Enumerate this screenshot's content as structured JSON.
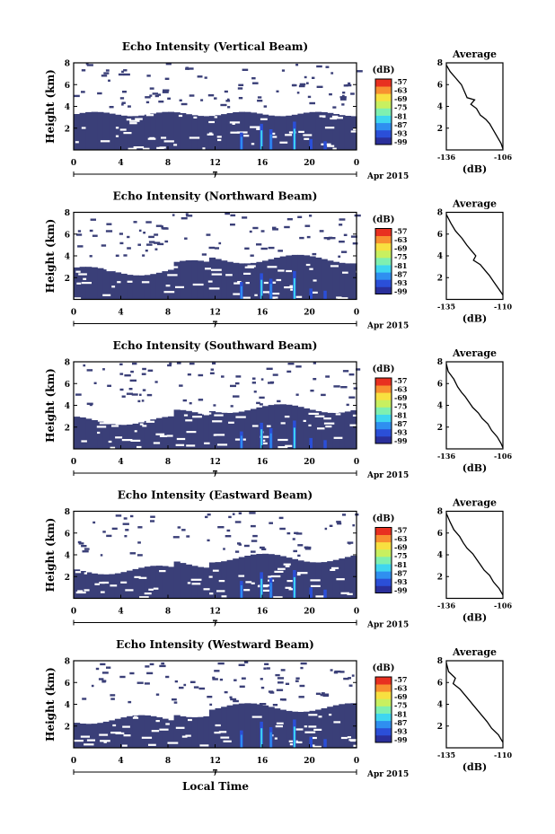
{
  "figure": {
    "xlabel": "Local Time",
    "colors": {
      "background_echo": "#3a3f78",
      "colormap": [
        "#2a2f9a",
        "#2b4fd8",
        "#2f8ff0",
        "#3fd6f0",
        "#7ff0b0",
        "#c8f060",
        "#f8e040",
        "#f89030",
        "#e83020"
      ]
    }
  },
  "chart_data": [
    {
      "type": "heatmap",
      "title": "Echo Intensity (Vertical Beam)",
      "ylabel": "Height (km)",
      "x_ticks": [
        "0",
        "4",
        "8",
        "12",
        "16",
        "20",
        "0"
      ],
      "x_day": "7",
      "x_month": "Apr 2015",
      "ylim": [
        0,
        8
      ],
      "y_ticks": [
        "2",
        "4",
        "6",
        "8"
      ],
      "colorbar_unit": "(dB)",
      "colorbar_ticks": [
        "-57",
        "-63",
        "-69",
        "-75",
        "-81",
        "-87",
        "-93",
        "-99"
      ],
      "profile": {
        "title": "Average",
        "xlabel": "(dB)",
        "x_ticks": [
          "-136",
          "-106"
        ],
        "y_ticks": [
          "2",
          "4",
          "6",
          "8"
        ],
        "points": [
          [
            -136,
            7.8
          ],
          [
            -134,
            7.2
          ],
          [
            -131,
            6.6
          ],
          [
            -128,
            6.0
          ],
          [
            -126,
            5.2
          ],
          [
            -125,
            4.8
          ],
          [
            -121,
            4.6
          ],
          [
            -123,
            4.2
          ],
          [
            -120,
            3.8
          ],
          [
            -118,
            3.2
          ],
          [
            -115,
            2.8
          ],
          [
            -113,
            2.4
          ],
          [
            -111,
            1.8
          ],
          [
            -109,
            1.2
          ],
          [
            -107,
            0.6
          ],
          [
            -106,
            0.1
          ]
        ]
      }
    },
    {
      "type": "heatmap",
      "title": "Echo Intensity (Northward Beam)",
      "ylabel": "Height (km)",
      "x_ticks": [
        "0",
        "4",
        "8",
        "12",
        "16",
        "20",
        "0"
      ],
      "x_day": "7",
      "x_month": "Apr 2015",
      "ylim": [
        0,
        8
      ],
      "y_ticks": [
        "2",
        "4",
        "6",
        "8"
      ],
      "colorbar_unit": "(dB)",
      "colorbar_ticks": [
        "-57",
        "-63",
        "-69",
        "-75",
        "-81",
        "-87",
        "-93",
        "-99"
      ],
      "profile": {
        "title": "Average",
        "xlabel": "(dB)",
        "x_ticks": [
          "-135",
          "-110"
        ],
        "y_ticks": [
          "2",
          "4",
          "6",
          "8"
        ],
        "points": [
          [
            -135,
            7.8
          ],
          [
            -133,
            7.0
          ],
          [
            -131,
            6.3
          ],
          [
            -128,
            5.6
          ],
          [
            -126,
            5.0
          ],
          [
            -124,
            4.5
          ],
          [
            -122,
            4.0
          ],
          [
            -123,
            3.6
          ],
          [
            -120,
            3.2
          ],
          [
            -118,
            2.7
          ],
          [
            -116,
            2.2
          ],
          [
            -114,
            1.6
          ],
          [
            -112,
            1.0
          ],
          [
            -110,
            0.4
          ]
        ]
      }
    },
    {
      "type": "heatmap",
      "title": "Echo Intensity (Southward Beam)",
      "ylabel": "Height (km)",
      "x_ticks": [
        "0",
        "4",
        "8",
        "12",
        "16",
        "20",
        "0"
      ],
      "x_day": "7",
      "x_month": "Apr 2015",
      "ylim": [
        0,
        8
      ],
      "y_ticks": [
        "2",
        "4",
        "6",
        "8"
      ],
      "colorbar_unit": "(dB)",
      "colorbar_ticks": [
        "-57",
        "-63",
        "-69",
        "-75",
        "-81",
        "-87",
        "-93",
        "-99"
      ],
      "profile": {
        "title": "Average",
        "xlabel": "(dB)",
        "x_ticks": [
          "-136",
          "-106"
        ],
        "y_ticks": [
          "2",
          "4",
          "6",
          "8"
        ],
        "points": [
          [
            -136,
            7.8
          ],
          [
            -135,
            7.1
          ],
          [
            -132,
            6.4
          ],
          [
            -130,
            5.7
          ],
          [
            -128,
            5.2
          ],
          [
            -126,
            4.8
          ],
          [
            -124,
            4.3
          ],
          [
            -122,
            3.8
          ],
          [
            -119,
            3.3
          ],
          [
            -117,
            2.8
          ],
          [
            -114,
            2.3
          ],
          [
            -112,
            1.7
          ],
          [
            -109,
            1.1
          ],
          [
            -107,
            0.5
          ],
          [
            -106,
            0.1
          ]
        ]
      }
    },
    {
      "type": "heatmap",
      "title": "Echo Intensity (Eastward Beam)",
      "ylabel": "Height (km)",
      "x_ticks": [
        "0",
        "4",
        "8",
        "12",
        "16",
        "20",
        "0"
      ],
      "x_day": "7",
      "x_month": "Apr 2015",
      "ylim": [
        0,
        8
      ],
      "y_ticks": [
        "2",
        "4",
        "6",
        "8"
      ],
      "colorbar_unit": "(dB)",
      "colorbar_ticks": [
        "-57",
        "-63",
        "-69",
        "-75",
        "-81",
        "-87",
        "-93",
        "-99"
      ],
      "profile": {
        "title": "Average",
        "xlabel": "(dB)",
        "x_ticks": [
          "-136",
          "-106"
        ],
        "y_ticks": [
          "2",
          "4",
          "6",
          "8"
        ],
        "points": [
          [
            -136,
            7.8
          ],
          [
            -134,
            7.0
          ],
          [
            -132,
            6.3
          ],
          [
            -129,
            5.7
          ],
          [
            -127,
            5.1
          ],
          [
            -125,
            4.6
          ],
          [
            -122,
            4.1
          ],
          [
            -120,
            3.6
          ],
          [
            -118,
            3.1
          ],
          [
            -116,
            2.6
          ],
          [
            -113,
            2.1
          ],
          [
            -111,
            1.5
          ],
          [
            -108,
            0.9
          ],
          [
            -106,
            0.3
          ]
        ]
      }
    },
    {
      "type": "heatmap",
      "title": "Echo Intensity (Westward Beam)",
      "ylabel": "Height (km)",
      "x_ticks": [
        "0",
        "4",
        "8",
        "12",
        "16",
        "20",
        "0"
      ],
      "x_day": "7",
      "x_month": "Apr 2015",
      "ylim": [
        0,
        8
      ],
      "y_ticks": [
        "2",
        "4",
        "6",
        "8"
      ],
      "colorbar_unit": "(dB)",
      "colorbar_ticks": [
        "-57",
        "-63",
        "-69",
        "-75",
        "-81",
        "-87",
        "-93",
        "-99"
      ],
      "profile": {
        "title": "Average",
        "xlabel": "(dB)",
        "x_ticks": [
          "-135",
          "-110"
        ],
        "y_ticks": [
          "2",
          "4",
          "6",
          "8"
        ],
        "points": [
          [
            -135,
            7.8
          ],
          [
            -134,
            7.0
          ],
          [
            -131,
            6.4
          ],
          [
            -132,
            5.9
          ],
          [
            -129,
            5.4
          ],
          [
            -127,
            4.9
          ],
          [
            -125,
            4.4
          ],
          [
            -123,
            3.9
          ],
          [
            -121,
            3.4
          ],
          [
            -119,
            2.9
          ],
          [
            -117,
            2.4
          ],
          [
            -115,
            1.8
          ],
          [
            -112,
            1.2
          ],
          [
            -110,
            0.5
          ]
        ]
      }
    }
  ]
}
